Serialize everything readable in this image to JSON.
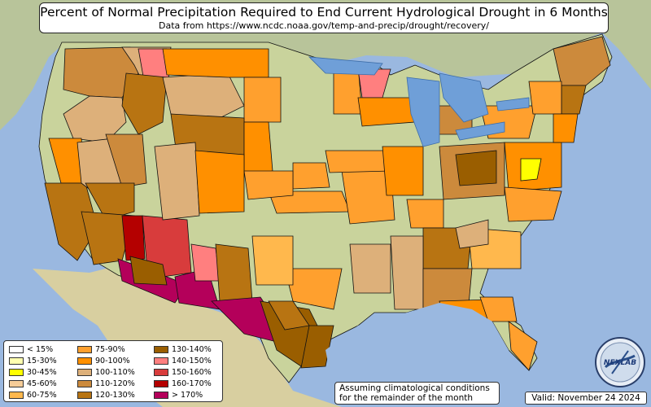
{
  "title": "Percent of Normal Precipitation Required to End Current Hydrological Drought in 6 Months",
  "subtitle": "Data from https://www.ncdc.noaa.gov/temp-and-precip/drought/recovery/",
  "note": {
    "line1": "Assuming climatological conditions",
    "line2": "for the remainder of the month"
  },
  "valid": "Valid: November 24 2024",
  "logo_text": "NEXLAB",
  "legend": [
    {
      "label": "< 15%",
      "color": "#ffffff"
    },
    {
      "label": "15-30%",
      "color": "#ffffb0"
    },
    {
      "label": "30-45%",
      "color": "#ffff00"
    },
    {
      "label": "45-60%",
      "color": "#f5cc98"
    },
    {
      "label": "60-75%",
      "color": "#ffb84d"
    },
    {
      "label": "75-90%",
      "color": "#ffa02e"
    },
    {
      "label": "90-100%",
      "color": "#ff9000"
    },
    {
      "label": "100-110%",
      "color": "#ddb07a"
    },
    {
      "label": "110-120%",
      "color": "#cc8a3c"
    },
    {
      "label": "120-130%",
      "color": "#b87412"
    },
    {
      "label": "130-140%",
      "color": "#9a5e00"
    },
    {
      "label": "140-150%",
      "color": "#ff7f7f"
    },
    {
      "label": "150-160%",
      "color": "#d83c3c"
    },
    {
      "label": "160-170%",
      "color": "#b40000"
    },
    {
      "label": "> 170%",
      "color": "#b4005a"
    }
  ],
  "colors": {
    "ocean": "#9ab8e0",
    "land": "#c9d39c",
    "land_dry": "#d8cfa0",
    "canada": "#b8c49a",
    "lakes": "#6f9fd8",
    "border": "#111111"
  }
}
